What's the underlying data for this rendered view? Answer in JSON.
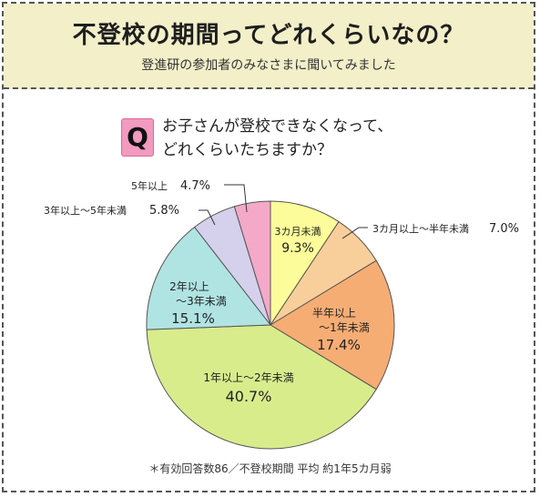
{
  "header": {
    "title": "不登校の期間ってどれくらいなの？",
    "subtitle": "登進研の参加者のみなさまに聞いてみました"
  },
  "question": {
    "badge": "Q",
    "line1": "お子さんが登校できなくなって、",
    "line2": "どれくらいたちますか？"
  },
  "note": "＊有効回答数86／不登校期間 平均 約1年5カ月弱",
  "chart_data": {
    "type": "pie",
    "unit": "%",
    "slices": [
      {
        "label": "3カ月未満",
        "value": 9.3,
        "value_text": "9.3%",
        "color": "#fdfc9a"
      },
      {
        "label": "3カ月以上～半年未満",
        "value": 7.0,
        "value_text": "7.0%",
        "color": "#f8cf9a"
      },
      {
        "label": "半年以上～1年未満",
        "value": 17.4,
        "value_text": "17.4%",
        "color": "#f6ad74"
      },
      {
        "label": "1年以上～2年未満",
        "value": 40.7,
        "value_text": "40.7%",
        "color": "#d8ec8c"
      },
      {
        "label": "2年以上～3年未満",
        "value": 15.1,
        "value_text": "15.1%",
        "color": "#b0e4e3"
      },
      {
        "label": "3年以上～5年未満",
        "value": 5.8,
        "value_text": "5.8%",
        "color": "#d5d0eb"
      },
      {
        "label": "5年以上",
        "value": 4.7,
        "value_text": "4.7%",
        "color": "#f4a9c9"
      }
    ]
  }
}
